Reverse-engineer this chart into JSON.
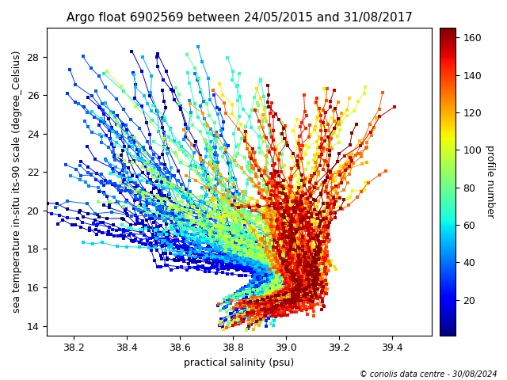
{
  "title": "Argo float 6902569 between 24/05/2015 and 31/08/2017",
  "xlabel": "practical salinity (psu)",
  "ylabel": "sea temperature in-situ its-90 scale (degree_Celsius)",
  "colorbar_label": "profile number",
  "copyright": "© coriolis data centre - 30/08/2024",
  "xlim": [
    38.1,
    39.55
  ],
  "ylim": [
    13.5,
    29.5
  ],
  "xticks": [
    38.2,
    38.4,
    38.6,
    38.8,
    39.0,
    39.2,
    39.4
  ],
  "yticks": [
    14,
    16,
    18,
    20,
    22,
    24,
    26,
    28
  ],
  "cmap": "jet",
  "n_profiles": 165,
  "vmin": 1,
  "vmax": 165,
  "colorbar_ticks": [
    20,
    40,
    60,
    80,
    100,
    120,
    140,
    160
  ],
  "marker": "s",
  "markersize": 2.5,
  "linewidth": 0.7,
  "title_fontsize": 11,
  "label_fontsize": 9,
  "tick_fontsize": 9,
  "colorbar_fontsize": 9,
  "figwidth": 6.4,
  "figheight": 4.8,
  "dpi": 100
}
